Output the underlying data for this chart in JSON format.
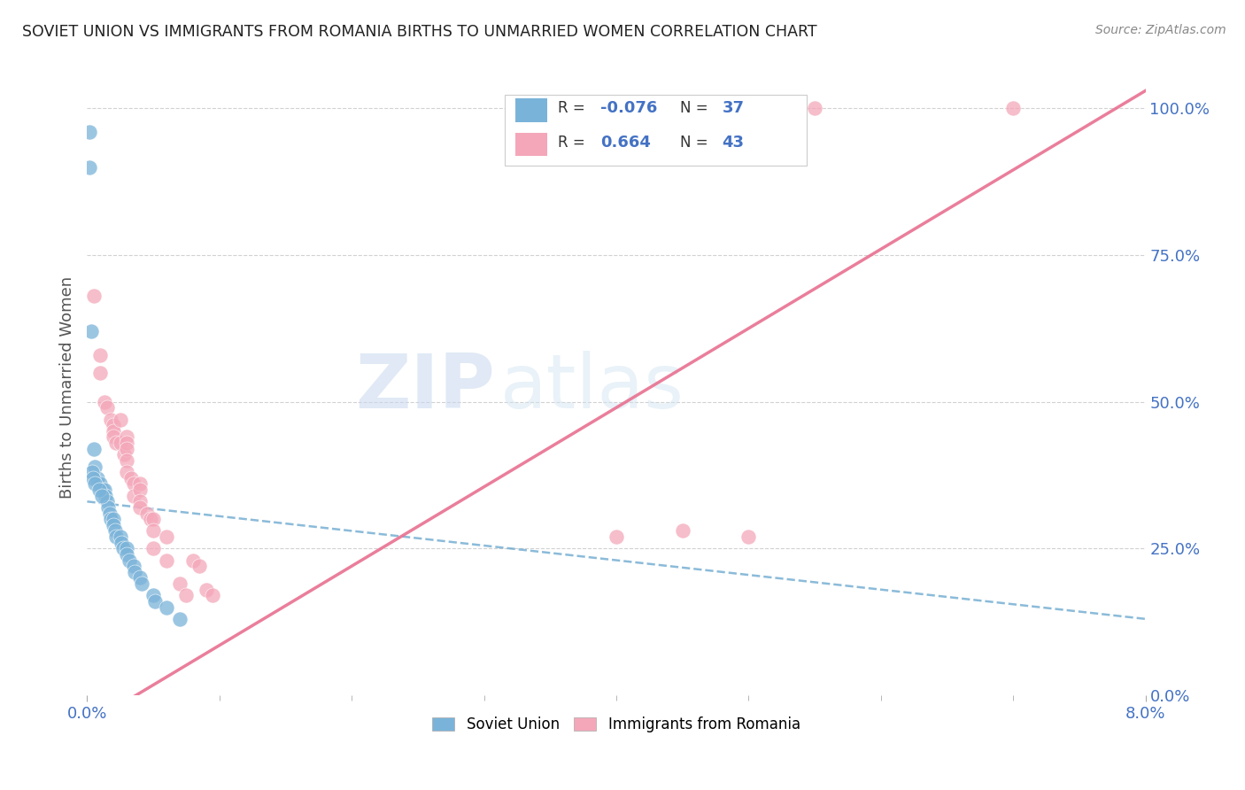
{
  "title": "SOVIET UNION VS IMMIGRANTS FROM ROMANIA BIRTHS TO UNMARRIED WOMEN CORRELATION CHART",
  "source": "Source: ZipAtlas.com",
  "ylabel": "Births to Unmarried Women",
  "watermark_zip": "ZIP",
  "watermark_atlas": "atlas",
  "soviet_color": "#7ab3d9",
  "romania_color": "#f4a7b9",
  "regression_soviet_color": "#5a9ec9",
  "regression_romania_color": "#e87090",
  "grid_color": "#cccccc",
  "title_color": "#222222",
  "axis_label_color": "#4472c4",
  "xmin": 0.0,
  "xmax": 0.08,
  "ymin": 0.0,
  "ymax": 1.05,
  "soviet_x": [
    0.00015,
    0.0002,
    0.0003,
    0.0005,
    0.0006,
    0.0008,
    0.001,
    0.0012,
    0.0013,
    0.0014,
    0.0015,
    0.0016,
    0.0017,
    0.0018,
    0.002,
    0.002,
    0.0021,
    0.0022,
    0.0025,
    0.0026,
    0.0027,
    0.003,
    0.003,
    0.0032,
    0.0035,
    0.0036,
    0.004,
    0.0041,
    0.005,
    0.0051,
    0.006,
    0.007,
    0.00035,
    0.00045,
    0.00055,
    0.0009,
    0.0011
  ],
  "soviet_y": [
    0.96,
    0.9,
    0.62,
    0.42,
    0.39,
    0.37,
    0.36,
    0.35,
    0.35,
    0.34,
    0.33,
    0.32,
    0.31,
    0.3,
    0.3,
    0.29,
    0.28,
    0.27,
    0.27,
    0.26,
    0.25,
    0.25,
    0.24,
    0.23,
    0.22,
    0.21,
    0.2,
    0.19,
    0.17,
    0.16,
    0.15,
    0.13,
    0.38,
    0.37,
    0.36,
    0.35,
    0.34
  ],
  "romania_x": [
    0.0005,
    0.001,
    0.001,
    0.0013,
    0.0015,
    0.0018,
    0.002,
    0.002,
    0.002,
    0.0022,
    0.0025,
    0.0025,
    0.0028,
    0.003,
    0.003,
    0.003,
    0.003,
    0.003,
    0.0033,
    0.0035,
    0.0035,
    0.004,
    0.004,
    0.004,
    0.004,
    0.0045,
    0.0048,
    0.005,
    0.005,
    0.005,
    0.006,
    0.006,
    0.007,
    0.0075,
    0.008,
    0.0085,
    0.009,
    0.0095,
    0.04,
    0.045,
    0.05,
    0.055,
    0.07
  ],
  "romania_y": [
    0.68,
    0.58,
    0.55,
    0.5,
    0.49,
    0.47,
    0.46,
    0.45,
    0.44,
    0.43,
    0.47,
    0.43,
    0.41,
    0.44,
    0.43,
    0.42,
    0.4,
    0.38,
    0.37,
    0.36,
    0.34,
    0.36,
    0.35,
    0.33,
    0.32,
    0.31,
    0.3,
    0.3,
    0.28,
    0.25,
    0.27,
    0.23,
    0.19,
    0.17,
    0.23,
    0.22,
    0.18,
    0.17,
    0.27,
    0.28,
    0.27,
    1.0,
    1.0
  ],
  "legend_R_soviet": "-0.076",
  "legend_N_soviet": "37",
  "legend_R_romania": "0.664",
  "legend_N_romania": "43"
}
